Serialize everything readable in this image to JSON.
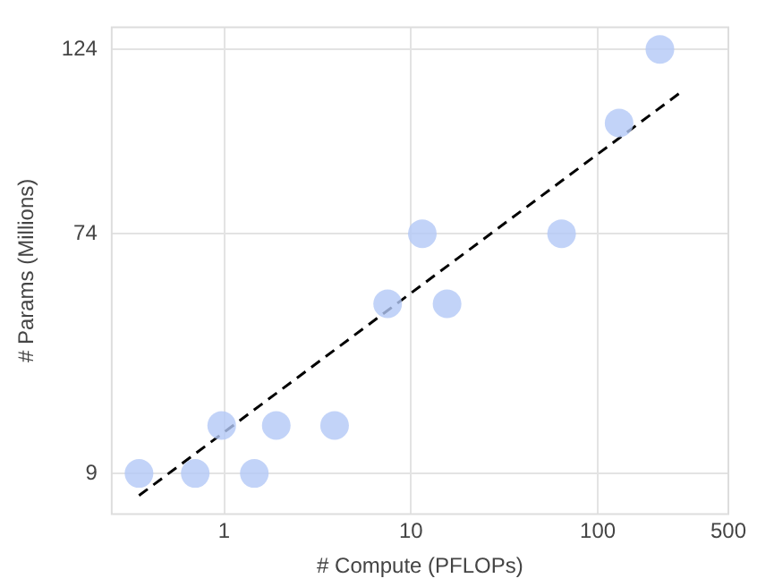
{
  "chart_data": {
    "type": "scatter",
    "xlabel": "# Compute (PFLOPs)",
    "ylabel": "# Params (Millions)",
    "log": "x",
    "xlim": [
      0.25,
      500
    ],
    "xticks": [
      1,
      10,
      100,
      500
    ],
    "ylim": [
      -2,
      130
    ],
    "yticks": [
      9,
      74,
      124
    ],
    "grid": true,
    "marker": "circle",
    "series": [
      {
        "color": "#b3c8f6",
        "x": [
          0.35,
          0.7,
          1.45,
          0.97,
          1.9,
          3.9,
          7.5,
          15.6,
          11.5,
          64,
          130,
          215
        ],
        "values": [
          9,
          9,
          9,
          22,
          22,
          22,
          55,
          55,
          74,
          74,
          104,
          124
        ]
      },
      {
        "type": "line",
        "color": "#000000",
        "line_style": "dashed",
        "marker": "none",
        "x": [
          0.35,
          272
        ],
        "values": [
          3,
          112
        ]
      }
    ]
  }
}
